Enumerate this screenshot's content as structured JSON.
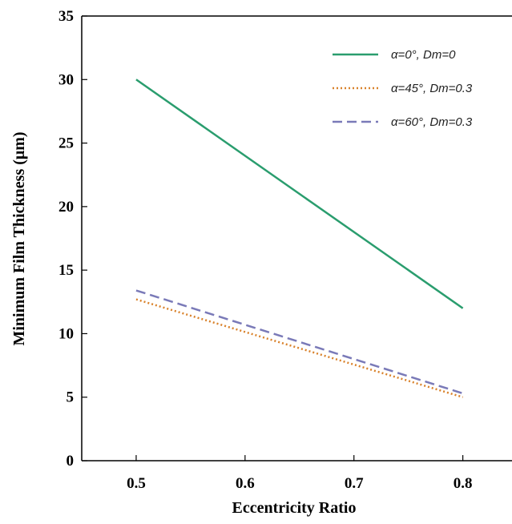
{
  "chart_data": {
    "type": "line",
    "x_label": "Eccentricity Ratio",
    "y_label": "Minimum Film Thickness (μm)",
    "x": [
      0.5,
      0.8
    ],
    "series": [
      {
        "name": "α=0°, Dm=0",
        "color": "#2a9d6e",
        "dash": "solid",
        "values": [
          30,
          12
        ]
      },
      {
        "name": "α=45°, Dm=0.3",
        "color": "#d9822b",
        "dash": "dotted",
        "values": [
          12.7,
          5.0
        ]
      },
      {
        "name": "α=60°, Dm=0.3",
        "color": "#7a7ab8",
        "dash": "dashed",
        "values": [
          13.4,
          5.3
        ]
      }
    ],
    "xlim": [
      0.45,
      0.84
    ],
    "xticks": [
      0.5,
      0.6,
      0.7,
      0.8
    ],
    "ylim": [
      0,
      35
    ],
    "yticks": [
      0,
      5,
      10,
      15,
      20,
      25,
      30,
      35
    ],
    "legend": "upper right"
  }
}
